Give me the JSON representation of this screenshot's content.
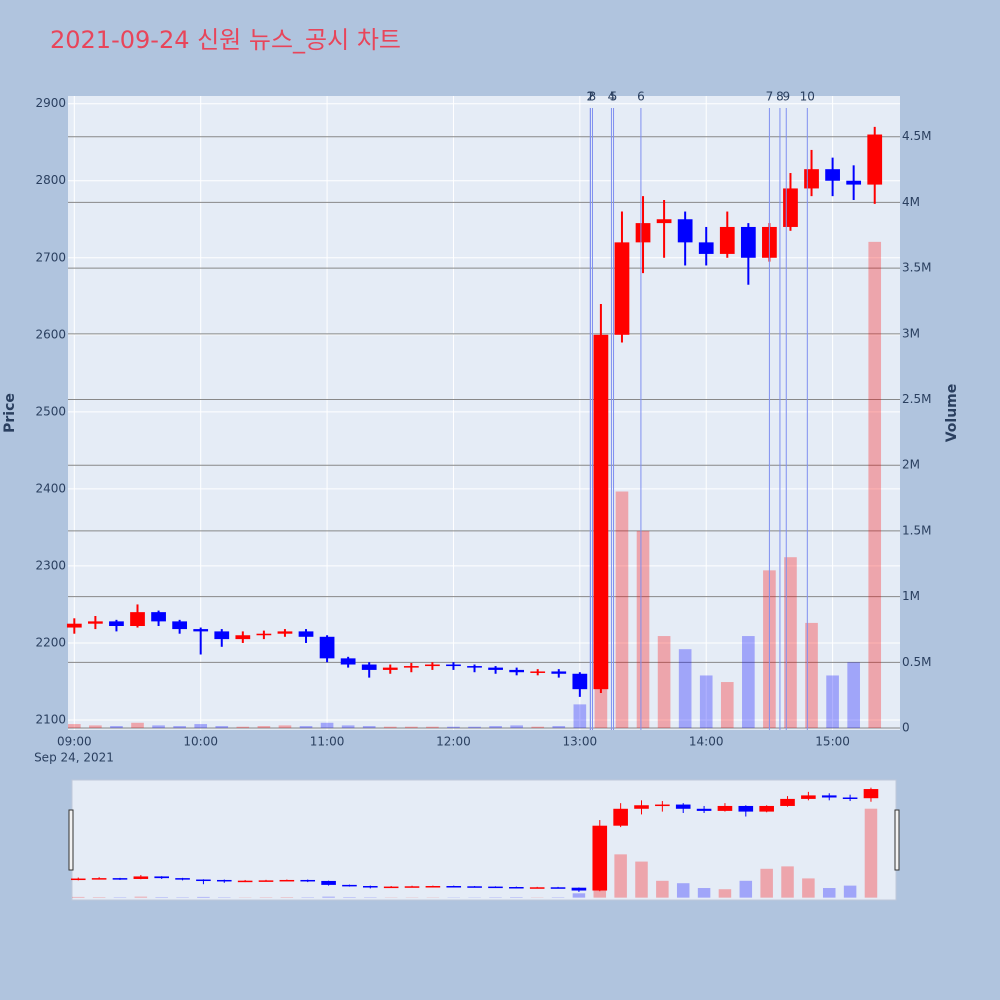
{
  "chart_data": {
    "type": "candlestick",
    "title": "2021-09-24 신원 뉴스_공시 차트",
    "y_title": "Price",
    "y2_title": "Volume",
    "x_date_label": "Sep 24, 2021",
    "x": [
      "09:00",
      "09:10",
      "09:20",
      "09:30",
      "09:40",
      "09:50",
      "10:00",
      "10:10",
      "10:20",
      "10:30",
      "10:40",
      "10:50",
      "11:00",
      "11:10",
      "11:20",
      "11:30",
      "11:40",
      "11:50",
      "12:00",
      "12:10",
      "12:20",
      "12:30",
      "12:40",
      "12:50",
      "13:00",
      "13:10",
      "13:20",
      "13:30",
      "13:40",
      "13:50",
      "14:00",
      "14:10",
      "14:20",
      "14:30",
      "14:40",
      "14:50",
      "15:00",
      "15:10",
      "15:20"
    ],
    "open": [
      2220,
      2225,
      2228,
      2222,
      2240,
      2228,
      2218,
      2215,
      2205,
      2210,
      2212,
      2215,
      2208,
      2180,
      2172,
      2165,
      2168,
      2170,
      2172,
      2170,
      2168,
      2165,
      2162,
      2163,
      2160,
      2140,
      2600,
      2720,
      2745,
      2750,
      2720,
      2705,
      2740,
      2700,
      2740,
      2790,
      2815,
      2800,
      2795
    ],
    "high": [
      2232,
      2235,
      2230,
      2250,
      2242,
      2230,
      2220,
      2218,
      2215,
      2216,
      2218,
      2218,
      2210,
      2182,
      2175,
      2172,
      2174,
      2175,
      2175,
      2172,
      2170,
      2168,
      2166,
      2166,
      2162,
      2640,
      2760,
      2780,
      2775,
      2760,
      2740,
      2760,
      2745,
      2745,
      2810,
      2840,
      2830,
      2820,
      2870
    ],
    "low": [
      2212,
      2218,
      2215,
      2220,
      2222,
      2212,
      2185,
      2195,
      2200,
      2205,
      2208,
      2200,
      2175,
      2168,
      2155,
      2160,
      2162,
      2165,
      2165,
      2162,
      2160,
      2158,
      2158,
      2155,
      2130,
      2135,
      2590,
      2680,
      2700,
      2690,
      2690,
      2700,
      2665,
      2695,
      2735,
      2780,
      2780,
      2775,
      2770
    ],
    "close": [
      2225,
      2228,
      2222,
      2240,
      2228,
      2218,
      2215,
      2205,
      2210,
      2212,
      2215,
      2208,
      2180,
      2172,
      2165,
      2168,
      2170,
      2172,
      2170,
      2168,
      2165,
      2162,
      2163,
      2160,
      2140,
      2600,
      2720,
      2745,
      2750,
      2720,
      2705,
      2740,
      2700,
      2740,
      2790,
      2815,
      2800,
      2795,
      2860
    ],
    "volume": [
      30000,
      20000,
      15000,
      40000,
      20000,
      15000,
      30000,
      15000,
      10000,
      15000,
      20000,
      15000,
      40000,
      20000,
      15000,
      10000,
      10000,
      10000,
      10000,
      10000,
      15000,
      20000,
      10000,
      15000,
      180000,
      2000000,
      1800000,
      1500000,
      700000,
      600000,
      400000,
      350000,
      700000,
      1200000,
      1300000,
      800000,
      400000,
      500000,
      3700000
    ],
    "increasing_color": "#ff0000",
    "decreasing_color": "#0000ff",
    "news": [
      {
        "label": "1",
        "x": "13:05"
      },
      {
        "label": "2",
        "x": "13:05"
      },
      {
        "label": "3",
        "x": "13:06"
      },
      {
        "label": "4",
        "x": "13:15"
      },
      {
        "label": "5",
        "x": "13:16"
      },
      {
        "label": "6",
        "x": "13:29"
      },
      {
        "label": "7",
        "x": "14:30"
      },
      {
        "label": "8",
        "x": "14:35"
      },
      {
        "label": "9",
        "x": "14:38"
      },
      {
        "label": "10",
        "x": "14:48"
      }
    ],
    "news_color": "#7f8ff0",
    "xlim": [
      "08:57",
      "15:32"
    ],
    "xticks": [
      "09:00",
      "10:00",
      "11:00",
      "12:00",
      "13:00",
      "14:00",
      "15:00"
    ],
    "ylim": [
      2087,
      2910
    ],
    "yticks": [
      2100,
      2200,
      2300,
      2400,
      2500,
      2600,
      2700,
      2800,
      2900
    ],
    "y2lim": [
      -15000,
      4810000
    ],
    "y2ticks": [
      0,
      {
        "value": 500000,
        "label": "0.5M"
      },
      {
        "value": 1000000,
        "label": "1M"
      },
      {
        "value": 1500000,
        "label": "1.5M"
      },
      {
        "value": 2000000,
        "label": "2M"
      },
      {
        "value": 2500000,
        "label": "2.5M"
      },
      {
        "value": 3000000,
        "label": "3M"
      },
      {
        "value": 3500000,
        "label": "3.5M"
      },
      {
        "value": 4000000,
        "label": "4M"
      },
      {
        "value": 4500000,
        "label": "4.5M"
      }
    ],
    "grid": true,
    "rangeslider": true
  }
}
